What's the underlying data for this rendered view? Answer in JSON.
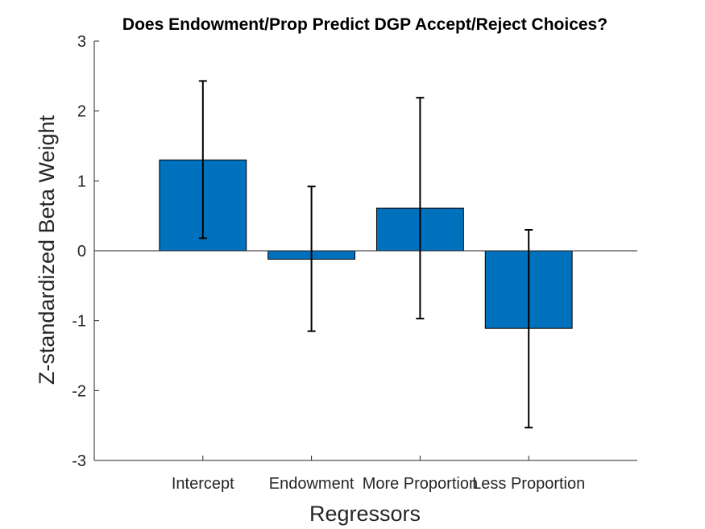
{
  "chart_data": {
    "type": "bar",
    "title": "Does Endowment/Prop Predict DGP Accept/Reject Choices?",
    "xlabel": "Regressors",
    "ylabel": "Z-standardized Beta Weight",
    "categories": [
      "Intercept",
      "Endowment",
      "More Proportion",
      "Less Proportion"
    ],
    "values": [
      1.3,
      -0.12,
      0.61,
      -1.11
    ],
    "error_bars": [
      {
        "low": 0.18,
        "high": 2.43
      },
      {
        "low": -1.15,
        "high": 0.92
      },
      {
        "low": -0.97,
        "high": 2.19
      },
      {
        "low": -2.53,
        "high": 0.3
      }
    ],
    "ylim": [
      -3,
      3
    ],
    "yticks": [
      "-3",
      "-2",
      "-1",
      "0",
      "1",
      "2",
      "3"
    ],
    "ytick_values": [
      -3,
      -2,
      -1,
      0,
      1,
      2,
      3
    ],
    "bar_color": "#0072BD",
    "grid": false
  }
}
